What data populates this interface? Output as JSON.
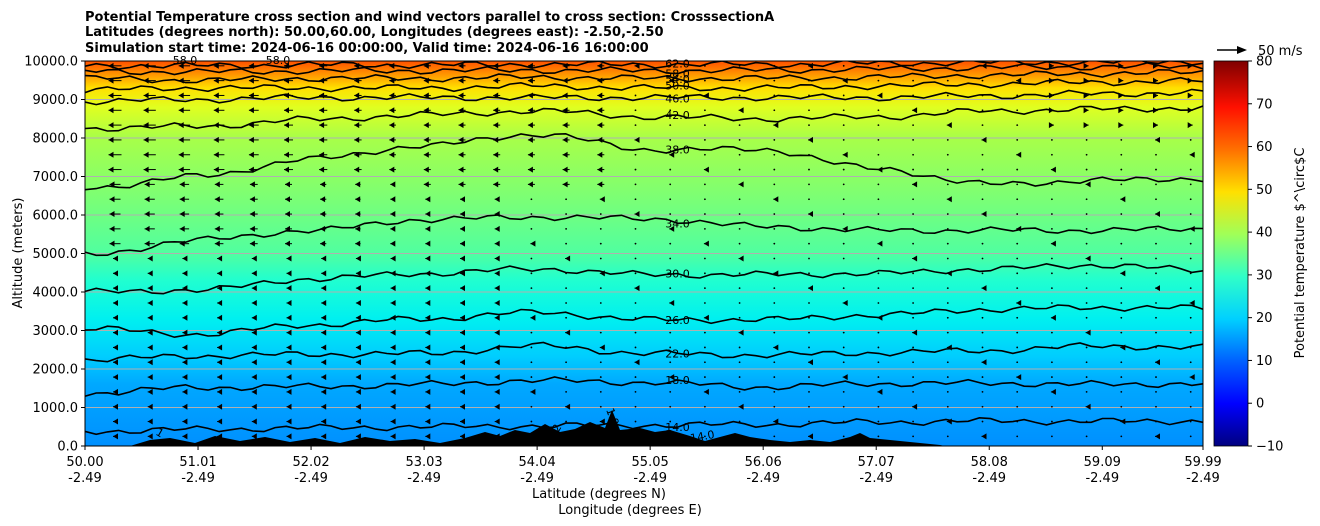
{
  "chart_data": {
    "type": "contour",
    "title_lines": [
      "Potential Temperature cross section and wind vectors parallel to cross section: CrosssectionA",
      "Latitudes (degrees north): 50.00,60.00, Longitudes (degrees east): -2.50,-2.50",
      "Simulation start time: 2024-06-16 00:00:00, Valid time: 2024-06-16 16:00:00"
    ],
    "ylabel": "Altitude (meters)",
    "xlabel_lines": [
      "Latitude (degrees N)",
      "Longitude (degrees E)"
    ],
    "x_ticks": [
      {
        "lat": "50.00",
        "lon": "-2.49"
      },
      {
        "lat": "51.01",
        "lon": "-2.49"
      },
      {
        "lat": "52.02",
        "lon": "-2.49"
      },
      {
        "lat": "53.03",
        "lon": "-2.49"
      },
      {
        "lat": "54.04",
        "lon": "-2.49"
      },
      {
        "lat": "55.05",
        "lon": "-2.49"
      },
      {
        "lat": "56.06",
        "lon": "-2.49"
      },
      {
        "lat": "57.07",
        "lon": "-2.49"
      },
      {
        "lat": "58.08",
        "lon": "-2.49"
      },
      {
        "lat": "59.09",
        "lon": "-2.49"
      },
      {
        "lat": "59.99",
        "lon": "-2.49"
      }
    ],
    "xlim": [
      50.0,
      59.99
    ],
    "ylim": [
      0,
      10000
    ],
    "y_ticks": [
      "0.0",
      "1000.0",
      "2000.0",
      "3000.0",
      "4000.0",
      "5000.0",
      "6000.0",
      "7000.0",
      "8000.0",
      "9000.0",
      "10000.0"
    ],
    "grid": "horizontal",
    "colorbar": {
      "label": "Potential temperature $^\\circ$C",
      "range": [
        -10,
        80
      ],
      "ticks": [
        "−10",
        "0",
        "10",
        "20",
        "30",
        "40",
        "50",
        "60",
        "70",
        "80"
      ],
      "colormap": "jet"
    },
    "quiver_key": {
      "label": "50 m/s",
      "value": 50
    },
    "contours": [
      {
        "level": "14.0",
        "alt": [
          380,
          430,
          470,
          500,
          520,
          540,
          560,
          620,
          650,
          640,
          650
        ]
      },
      {
        "level": "18.0",
        "alt": [
          1370,
          1520,
          1540,
          1600,
          1700,
          1650,
          1530,
          1620,
          1630,
          1600,
          1620
        ]
      },
      {
        "level": "22.0",
        "alt": [
          2240,
          2340,
          2380,
          2400,
          2600,
          2400,
          2360,
          2420,
          2480,
          2600,
          2550
        ]
      },
      {
        "level": "26.0",
        "alt": [
          3050,
          2900,
          3150,
          3300,
          3470,
          3280,
          3280,
          3400,
          3550,
          3600,
          3580
        ]
      },
      {
        "level": "30.0",
        "alt": [
          4000,
          4050,
          4340,
          4480,
          4600,
          4450,
          4450,
          4480,
          4600,
          4700,
          4560
        ]
      },
      {
        "level": "34.0",
        "alt": [
          4950,
          5350,
          5600,
          5880,
          5950,
          5900,
          5700,
          5600,
          5600,
          5600,
          5650
        ]
      },
      {
        "level": "38.0",
        "alt": [
          6700,
          7000,
          7450,
          7800,
          8100,
          7700,
          7700,
          7200,
          6800,
          6900,
          6950
        ]
      },
      {
        "level": "42.0",
        "alt": [
          8250,
          8300,
          8480,
          8600,
          8700,
          8550,
          8500,
          8550,
          8700,
          8750,
          8780
        ]
      },
      {
        "level": "46.0",
        "alt": [
          8950,
          9000,
          9050,
          9050,
          9050,
          9050,
          9050,
          9050,
          9100,
          9150,
          9180
        ]
      },
      {
        "level": "50.0",
        "alt": [
          9250,
          9300,
          9300,
          9300,
          9350,
          9300,
          9300,
          9350,
          9400,
          9450,
          9480
        ]
      },
      {
        "level": "54.0",
        "alt": [
          9550,
          9500,
          9550,
          9550,
          9580,
          9550,
          9550,
          9580,
          9630,
          9680,
          9700
        ]
      },
      {
        "level": "58.0",
        "alt": [
          9730,
          9720,
          9740,
          9750,
          9760,
          9750,
          9760,
          9790,
          9830,
          9850,
          9860
        ]
      },
      {
        "level": "62.0",
        "alt": [
          9880,
          9880,
          9900,
          9900,
          9910,
          9910,
          9910,
          9940,
          9960,
          9970,
          9990
        ]
      }
    ],
    "extra_contour_labels": [
      "58.0",
      "58.0",
      "1",
      "2",
      "1.0",
      "14.0"
    ]
  }
}
